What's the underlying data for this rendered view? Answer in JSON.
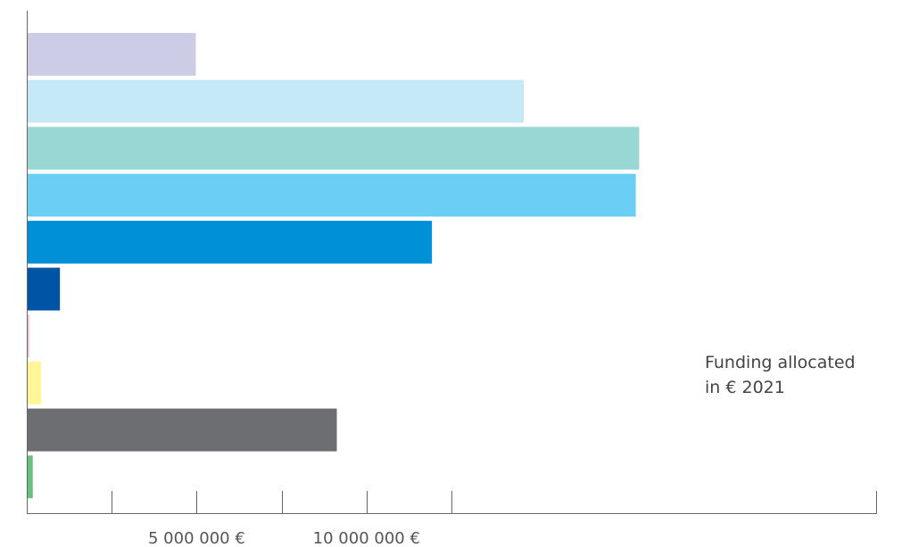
{
  "chart_data": {
    "type": "bar",
    "orientation": "horizontal",
    "xlim": [
      0,
      25000000
    ],
    "x_tick_values": [
      0,
      2500000,
      5000000,
      7500000,
      10000000,
      12500000
    ],
    "x_tick_labels": [
      {
        "value": 5000000,
        "label": "5 000 000 €"
      },
      {
        "value": 10000000,
        "label": "10 000 000 €"
      }
    ],
    "grid": false,
    "legend": "none",
    "annotation_lines": [
      "Funding allocated",
      "in € 2021"
    ],
    "bars": [
      {
        "value": 4950000,
        "color": "#cccce6"
      },
      {
        "value": 14600000,
        "color": "#c6e9f8"
      },
      {
        "value": 18000000,
        "color": "#99d7d4"
      },
      {
        "value": 17900000,
        "color": "#6bcff5"
      },
      {
        "value": 11900000,
        "color": "#0090d7"
      },
      {
        "value": 950000,
        "color": "#0054a6"
      },
      {
        "value": 50000,
        "color": "#f5c6dc"
      },
      {
        "value": 400000,
        "color": "#fff599"
      },
      {
        "value": 9100000,
        "color": "#6d6e71"
      },
      {
        "value": 150000,
        "color": "#66c17a"
      }
    ]
  }
}
